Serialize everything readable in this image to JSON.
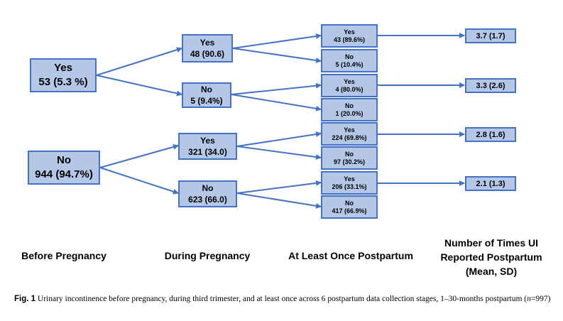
{
  "before": {
    "yes": {
      "label": "Yes",
      "value": "53 (5.3 %)"
    },
    "no": {
      "label": "No",
      "value": "944 (94.7%)"
    }
  },
  "during": {
    "yes_yes": {
      "label": "Yes",
      "value": "48 (90.6)"
    },
    "yes_no": {
      "label": "No",
      "value": "5 (9.4%)"
    },
    "no_yes": {
      "label": "Yes",
      "value": "321 (34.0)"
    },
    "no_no": {
      "label": "No",
      "value": "623 (66.0)"
    }
  },
  "postpartum": [
    {
      "label": "Yes",
      "value": "43 (89.6%)"
    },
    {
      "label": "No",
      "value": "5 (10.4%)"
    },
    {
      "label": "Yes",
      "value": "4 (80.0%)"
    },
    {
      "label": "No",
      "value": "1 (20.0%)"
    },
    {
      "label": "Yes",
      "value": "224 (69.8%)"
    },
    {
      "label": "No",
      "value": "97 (30.2%)"
    },
    {
      "label": "Yes",
      "value": "206 (33.1%)"
    },
    {
      "label": "No",
      "value": "417 (66.9%)"
    }
  ],
  "results": [
    "3.7 (1.7)",
    "3.3 (2.6)",
    "2.8 (1.6)",
    "2.1 (1.3)"
  ],
  "stages": {
    "before": "Before Pregnancy",
    "during": "During Pregnancy",
    "postpartum": "At Least Once Postpartum",
    "result_line1": "Number of Times UI",
    "result_line2": "Reported Postpartum",
    "result_line3": "(Mean, SD)"
  },
  "caption": {
    "label": "Fig. 1",
    "text_main": "Urinary incontinence before pregnancy, during third trimester, and at least once across 6 postpartum data collection stages, 1–30-months postpartum (",
    "n_var": "n",
    "n_rest": "=997)"
  },
  "colors": {
    "box_fill": "#b4c7e7",
    "box_border": "#4472c4",
    "arrow": "#4472c4"
  }
}
